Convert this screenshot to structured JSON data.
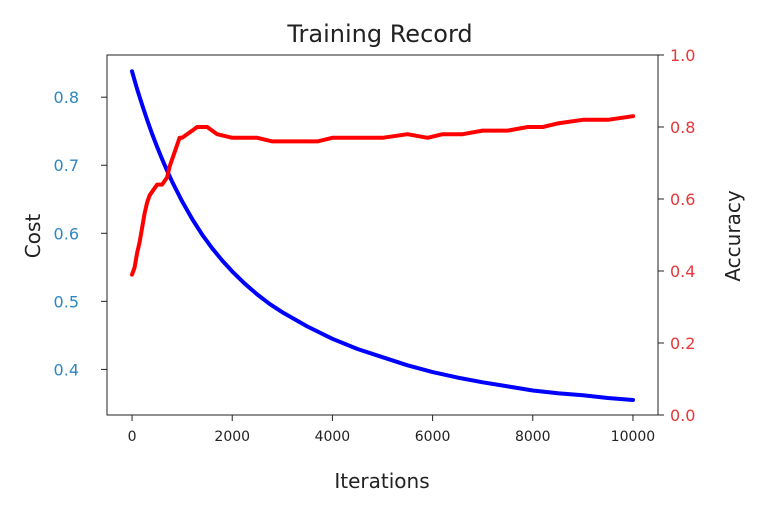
{
  "chart_data": {
    "type": "line",
    "title": "Training Record",
    "xlabel": "Iterations",
    "ylabel_left": "Cost",
    "ylabel_right": "Accuracy",
    "xlim": [
      -500,
      10500
    ],
    "ylim_left": [
      0.333,
      0.862
    ],
    "ylim_right": [
      0.0,
      1.0
    ],
    "x_ticks": [
      0,
      2000,
      4000,
      6000,
      8000,
      10000
    ],
    "y_left_ticks": [
      0.4,
      0.5,
      0.6,
      0.7,
      0.8
    ],
    "y_right_ticks": [
      0.0,
      0.2,
      0.4,
      0.6,
      0.8,
      1.0
    ],
    "grid": false,
    "series": [
      {
        "axis": "left",
        "color": "#0000ff",
        "x": [
          0,
          100,
          200,
          300,
          400,
          500,
          600,
          700,
          800,
          1000,
          1200,
          1400,
          1600,
          1800,
          2000,
          2250,
          2500,
          2750,
          3000,
          3500,
          4000,
          4500,
          5000,
          5500,
          6000,
          6500,
          7000,
          7500,
          8000,
          8500,
          9000,
          9500,
          10000
        ],
        "values": [
          0.838,
          0.812,
          0.789,
          0.767,
          0.746,
          0.727,
          0.709,
          0.692,
          0.676,
          0.647,
          0.621,
          0.598,
          0.578,
          0.56,
          0.544,
          0.526,
          0.51,
          0.496,
          0.484,
          0.463,
          0.445,
          0.43,
          0.418,
          0.406,
          0.396,
          0.388,
          0.381,
          0.375,
          0.369,
          0.365,
          0.362,
          0.358,
          0.355
        ]
      },
      {
        "axis": "right",
        "color": "#ff0000",
        "x": [
          0,
          50,
          100,
          150,
          200,
          250,
          300,
          350,
          400,
          450,
          500,
          600,
          700,
          750,
          800,
          850,
          900,
          950,
          1000,
          1100,
          1200,
          1300,
          1500,
          1700,
          2000,
          2500,
          2800,
          3200,
          3700,
          4000,
          4500,
          5000,
          5500,
          5900,
          6200,
          6600,
          7000,
          7500,
          7900,
          8200,
          8500,
          9000,
          9500,
          10000
        ],
        "values": [
          0.39,
          0.41,
          0.45,
          0.48,
          0.52,
          0.56,
          0.59,
          0.61,
          0.62,
          0.63,
          0.64,
          0.64,
          0.66,
          0.69,
          0.71,
          0.73,
          0.75,
          0.77,
          0.77,
          0.78,
          0.79,
          0.8,
          0.8,
          0.78,
          0.77,
          0.77,
          0.76,
          0.76,
          0.76,
          0.77,
          0.77,
          0.77,
          0.78,
          0.77,
          0.78,
          0.78,
          0.79,
          0.79,
          0.8,
          0.8,
          0.81,
          0.82,
          0.82,
          0.83
        ]
      }
    ]
  },
  "colors": {
    "cost_axis": "#2e86c1",
    "accuracy_axis": "#e8363a",
    "frame": "#222222"
  }
}
